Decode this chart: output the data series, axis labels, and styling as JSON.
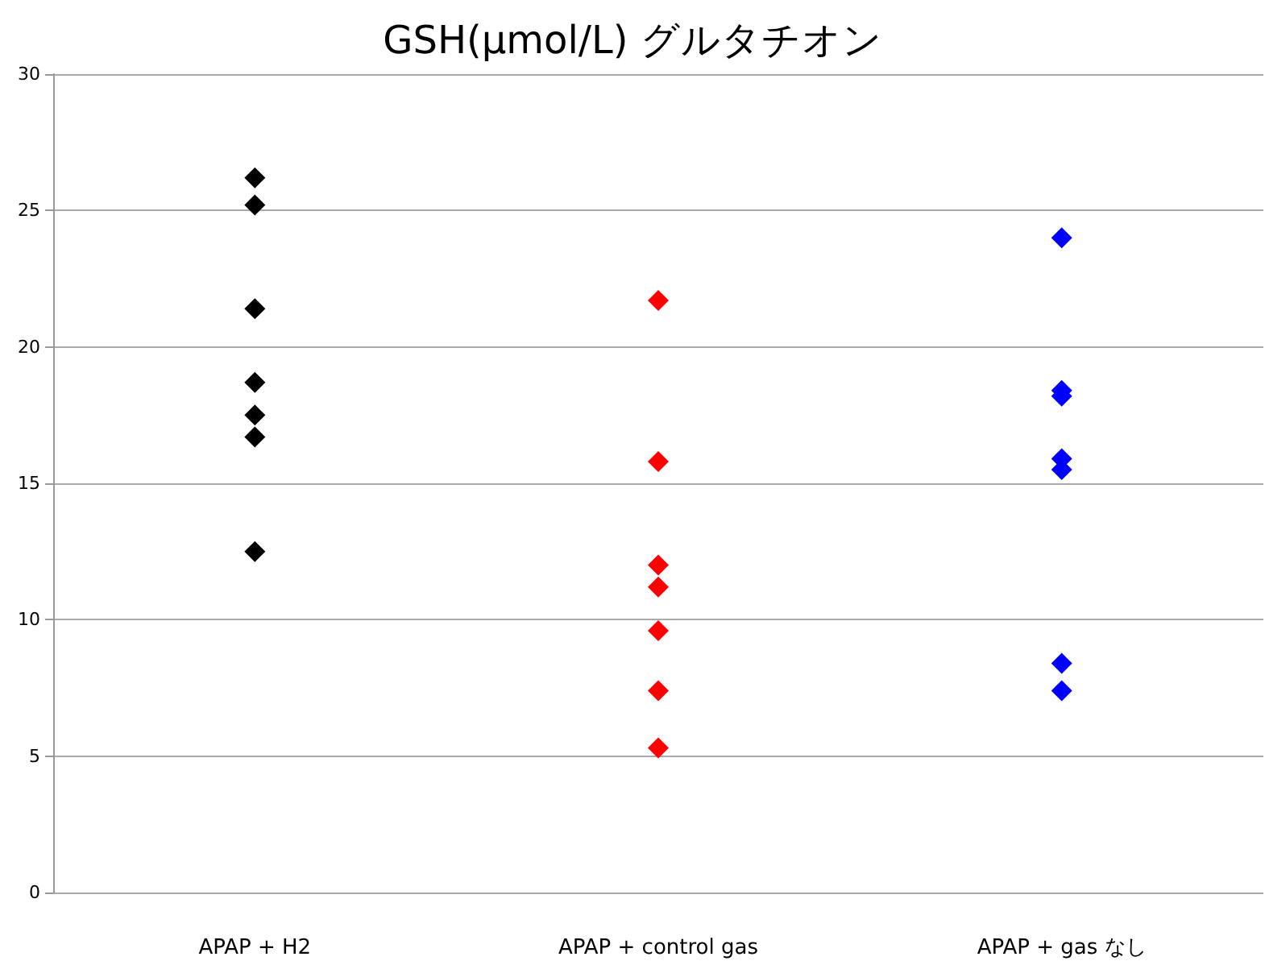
{
  "chart_data": {
    "type": "scatter",
    "title": "GSH(μmol/L) グルタチオン",
    "categories": [
      "APAP + H2",
      "APAP + control gas",
      "APAP + gas なし"
    ],
    "series": [
      {
        "color": "#000000",
        "x": [
          "APAP + H2",
          "APAP + H2",
          "APAP + H2",
          "APAP + H2",
          "APAP + H2",
          "APAP + H2",
          "APAP + H2"
        ],
        "values": [
          26.2,
          25.2,
          21.4,
          18.7,
          17.5,
          16.7,
          12.5
        ]
      },
      {
        "color": "#ff0000",
        "x": [
          "APAP + control gas",
          "APAP + control gas",
          "APAP + control gas",
          "APAP + control gas",
          "APAP + control gas",
          "APAP + control gas",
          "APAP + control gas"
        ],
        "values": [
          21.7,
          15.8,
          12.0,
          11.2,
          9.6,
          7.4,
          5.3
        ]
      },
      {
        "color": "#0000ff",
        "x": [
          "APAP + gas なし",
          "APAP + gas なし",
          "APAP + gas なし",
          "APAP + gas なし",
          "APAP + gas なし",
          "APAP + gas なし",
          "APAP + gas なし"
        ],
        "values": [
          24.0,
          18.4,
          18.2,
          15.9,
          15.5,
          8.4,
          7.4
        ]
      }
    ],
    "ylim": [
      0,
      30
    ],
    "yticks": [
      0,
      5,
      10,
      15,
      20,
      25,
      30
    ],
    "grid": "y",
    "marker": "diamond"
  }
}
